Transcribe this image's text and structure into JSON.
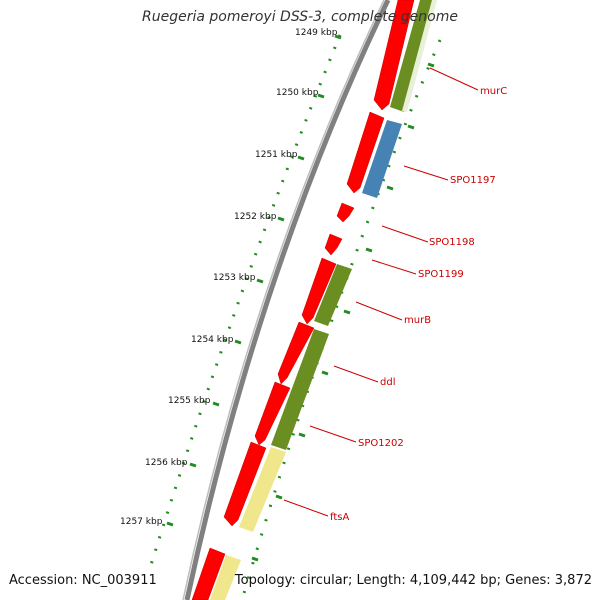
{
  "title": "Ruegeria pomeroyi DSS-3, complete genome",
  "footer": {
    "accession": "Accession: NC_003911",
    "topology": "Topology: circular; Length: 4,109,442 bp; Genes: 3,872"
  },
  "ticks": [
    {
      "label": "1249 kbp"
    },
    {
      "label": "1250 kbp"
    },
    {
      "label": "1251 kbp"
    },
    {
      "label": "1252 kbp"
    },
    {
      "label": "1253 kbp"
    },
    {
      "label": "1254 kbp"
    },
    {
      "label": "1255 kbp"
    },
    {
      "label": "1256 kbp"
    },
    {
      "label": "1257 kbp"
    }
  ],
  "genes": [
    {
      "name": "murC"
    },
    {
      "name": "SPO1197"
    },
    {
      "name": "SPO1198"
    },
    {
      "name": "SPO1199"
    },
    {
      "name": "murB"
    },
    {
      "name": "ddl"
    },
    {
      "name": "SPO1202"
    },
    {
      "name": "ftsA"
    }
  ],
  "colors": {
    "cds": "#ff0000",
    "olive": "#6b8e23",
    "blue": "#4682b4",
    "pale": "#f0e68c",
    "backbone": "#808080",
    "tick": "#228b22",
    "label": "#cc0000"
  }
}
